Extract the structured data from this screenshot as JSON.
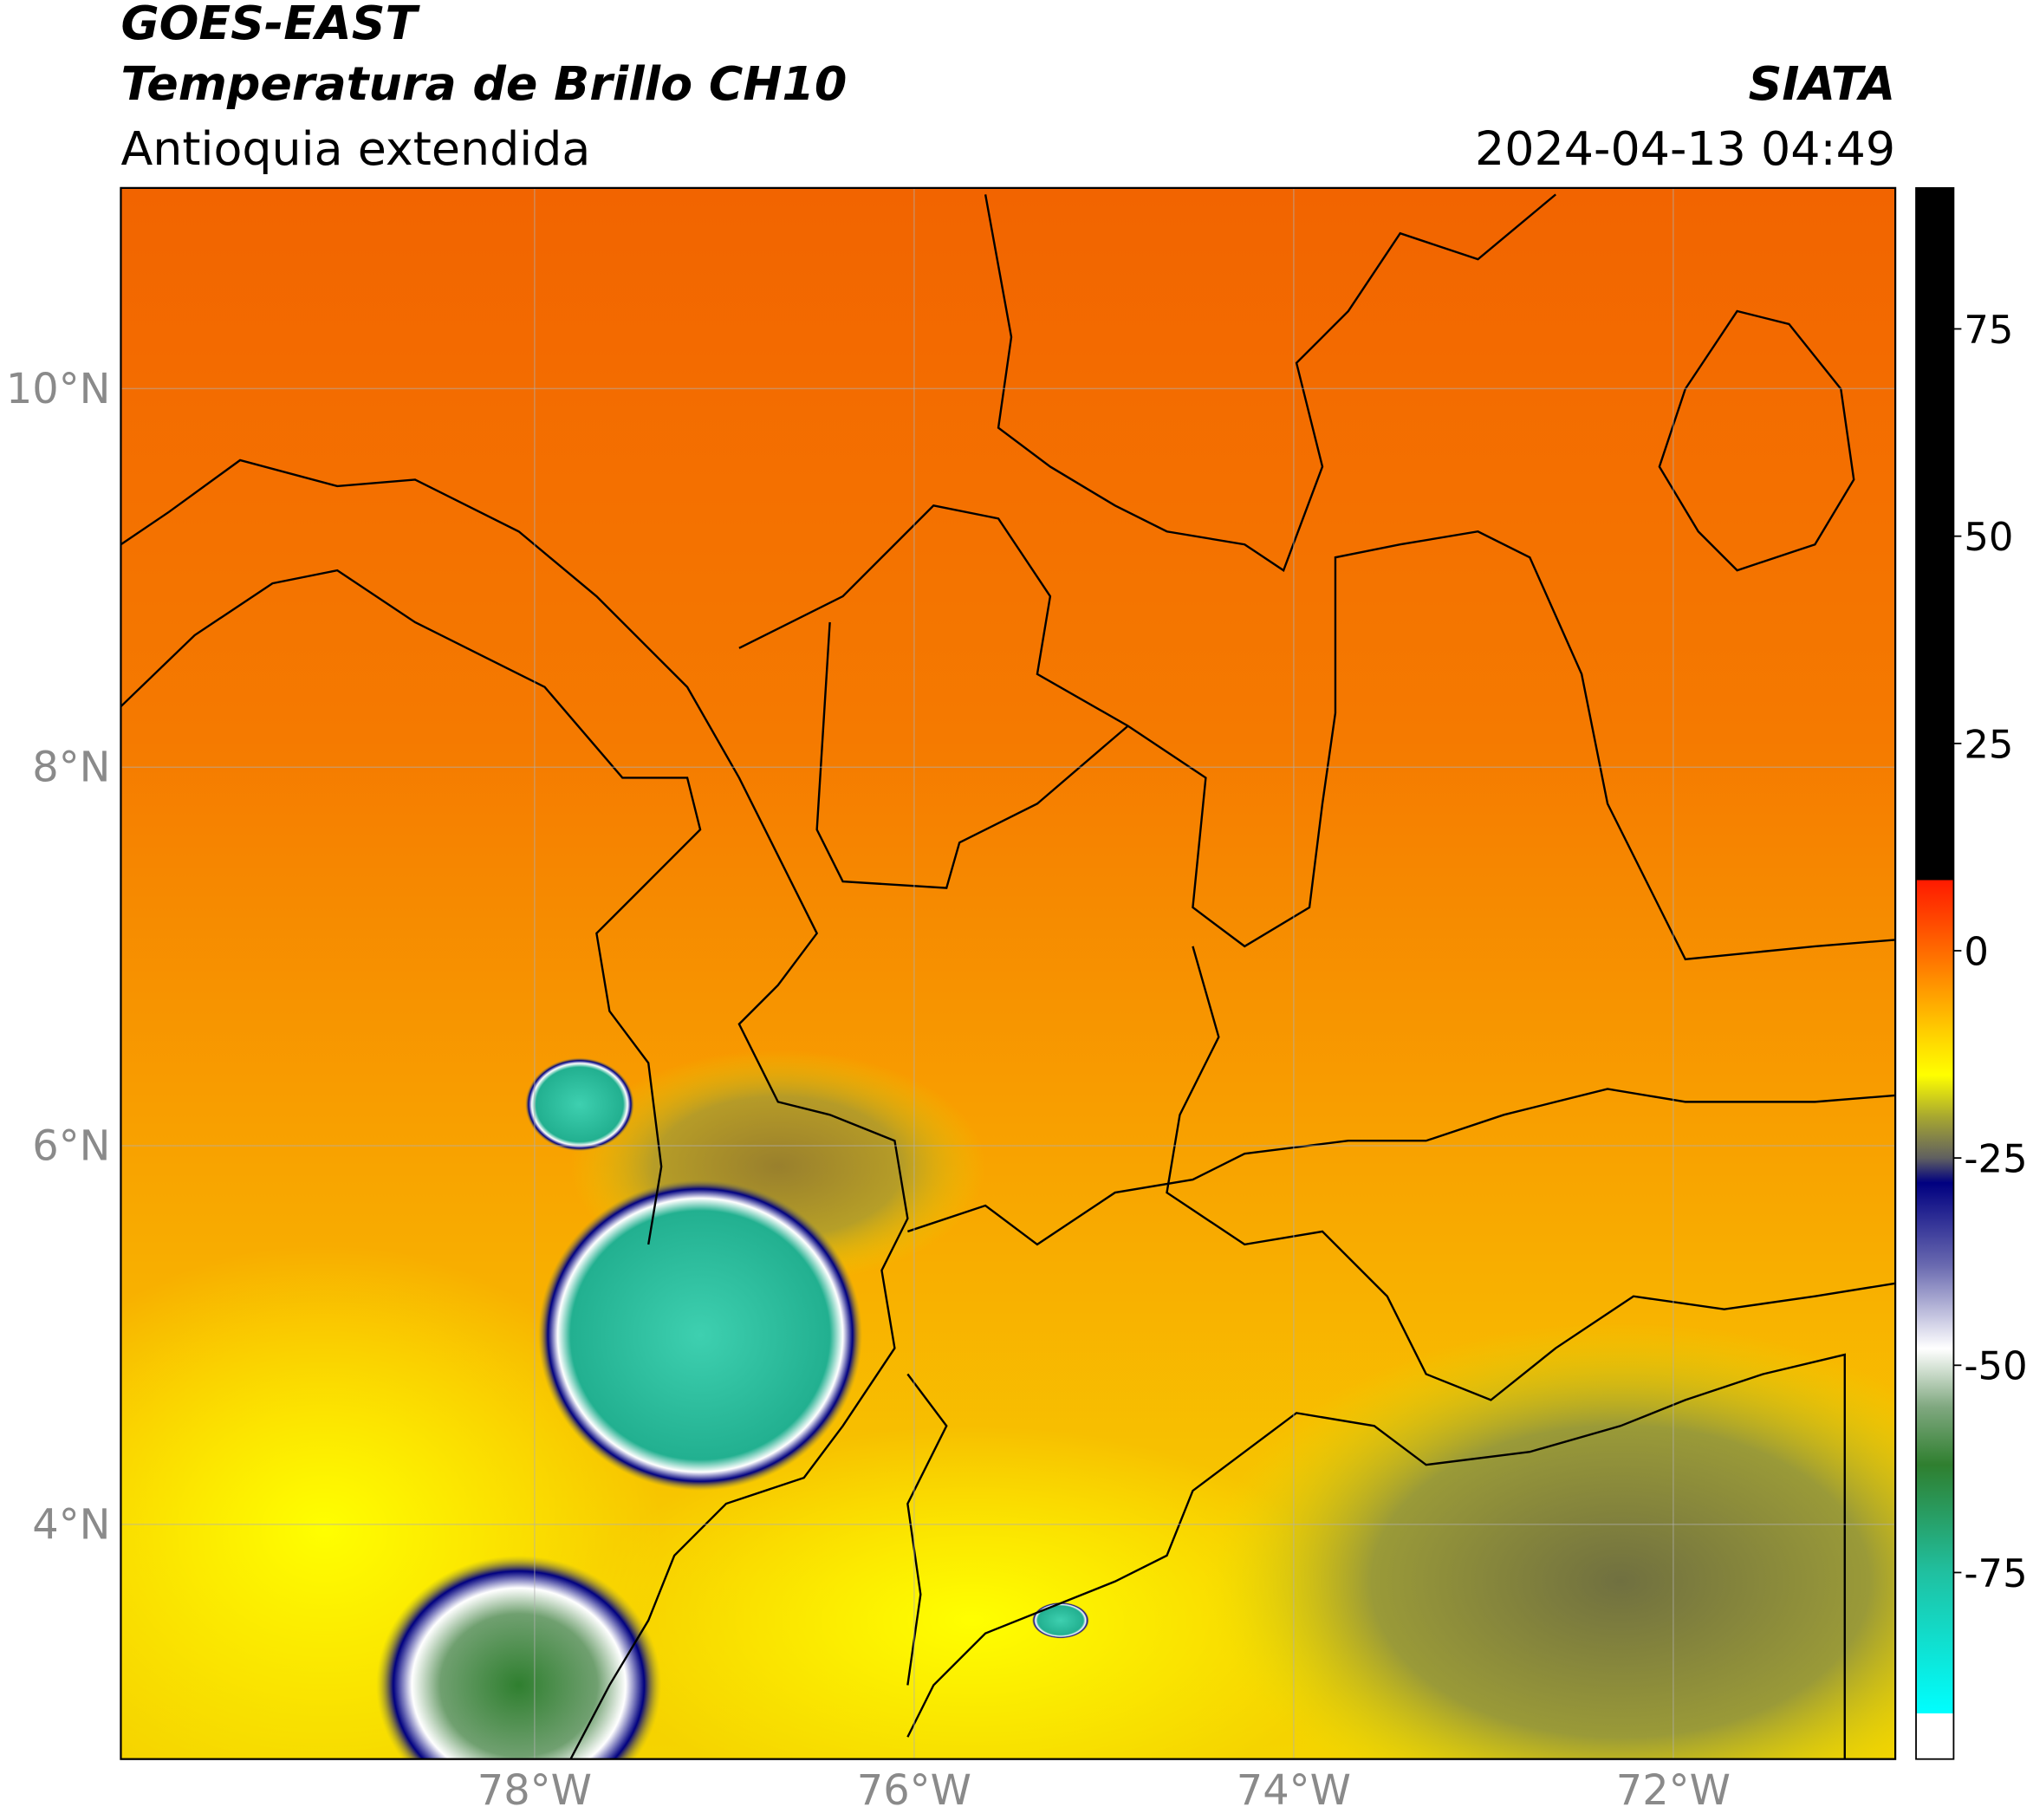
{
  "header": {
    "title": "GOES-EAST",
    "subtitle": "Temperatura de Brillo CH10",
    "region": "Antioquia extendida",
    "source": "SIATA",
    "datetime": "2024-04-13 04:49"
  },
  "map": {
    "xlim": [
      -80.18,
      -70.83
    ],
    "ylim": [
      2.76,
      11.06
    ],
    "xticks": [
      {
        "value": -78,
        "label": "78°W"
      },
      {
        "value": -76,
        "label": "76°W"
      },
      {
        "value": -74,
        "label": "74°W"
      },
      {
        "value": -72,
        "label": "72°W"
      }
    ],
    "yticks": [
      {
        "value": 4,
        "label": "4°N"
      },
      {
        "value": 6,
        "label": "6°N"
      },
      {
        "value": 8,
        "label": "8°N"
      },
      {
        "value": 10,
        "label": "10°N"
      }
    ],
    "grid": true
  },
  "colorbar": {
    "lim": [
      -97.5,
      92
    ],
    "ticks": [
      -75,
      -50,
      -25,
      0,
      25,
      50,
      75
    ],
    "colors": [
      {
        "value": 92,
        "color": "#000000"
      },
      {
        "value": 8.5,
        "color": "#000000"
      },
      {
        "value": 8.5,
        "color": "#ff1a00"
      },
      {
        "value": 0,
        "color": "#ff6a00"
      },
      {
        "value": -10,
        "color": "#ffd000"
      },
      {
        "value": -15,
        "color": "#ffff00"
      },
      {
        "value": -20,
        "color": "#a8a830"
      },
      {
        "value": -25,
        "color": "#606060"
      },
      {
        "value": -28,
        "color": "#000080"
      },
      {
        "value": -38,
        "color": "#6a6ab0"
      },
      {
        "value": -48,
        "color": "#ffffff"
      },
      {
        "value": -55,
        "color": "#80a880"
      },
      {
        "value": -62,
        "color": "#2f7f2f"
      },
      {
        "value": -75,
        "color": "#20c0a0"
      },
      {
        "value": -92,
        "color": "#00ffff"
      },
      {
        "value": -92,
        "color": "#ffffff"
      },
      {
        "value": -97.5,
        "color": "#ffffff"
      }
    ]
  }
}
